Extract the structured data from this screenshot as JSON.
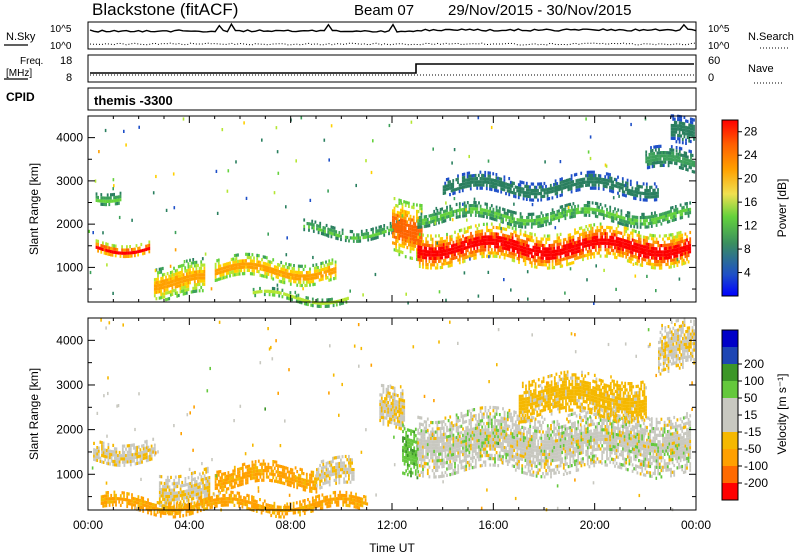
{
  "header": {
    "title": "Blackstone (fitACF)",
    "beam": "Beam 07",
    "date_range": "29/Nov/2015 - 30/Nov/2015"
  },
  "noise_panel": {
    "left_label": "N.Sky",
    "right_label": "N.Search",
    "left_ticks": [
      "10^5",
      "10^0"
    ],
    "right_ticks": [
      "10^5",
      "10^0"
    ]
  },
  "freq_panel": {
    "left_label_1": "Freq.",
    "left_label_2": "[MHz]",
    "right_label": "Nave",
    "left_ticks": [
      "18",
      "8"
    ],
    "right_ticks": [
      "60",
      "0"
    ]
  },
  "cpid_panel": {
    "label": "CPID",
    "value": "themis -3300"
  },
  "colors": {
    "power": [
      "#0000ff",
      "#1e4fc8",
      "#2a7f5f",
      "#3ca05a",
      "#64d23c",
      "#b4e632",
      "#ffd000",
      "#ffa000",
      "#ff6400",
      "#ff0000"
    ],
    "velocity": [
      "#ff0000",
      "#ff6a00",
      "#ffa000",
      "#f5b800",
      "#c8c8c0",
      "#c8c8c0",
      "#64c83c",
      "#3c9628",
      "#1e46b4",
      "#0000c8"
    ]
  },
  "chart_data": [
    {
      "type": "heatmap",
      "name": "power",
      "ylabel": "Slant Range [km]",
      "ylim": [
        200,
        4500
      ],
      "yticks": [
        1000,
        2000,
        3000,
        4000
      ],
      "colorbar_label": "Power [dB]",
      "colorbar_ticks": [
        4,
        8,
        12,
        16,
        20,
        24,
        28
      ],
      "colorbar_range": [
        0,
        30
      ],
      "features": [
        {
          "t": [
            0.3,
            2.4
          ],
          "r": [
            1380,
            1650
          ],
          "min": 14,
          "max": 27
        },
        {
          "t": [
            0.3,
            1.3
          ],
          "r": [
            2580,
            2850
          ],
          "min": 6,
          "max": 12
        },
        {
          "t": [
            2.6,
            4.6
          ],
          "r": [
            300,
            1100
          ],
          "min": 8,
          "max": 22
        },
        {
          "t": [
            5.0,
            9.8
          ],
          "r": [
            700,
            1200
          ],
          "min": 10,
          "max": 22
        },
        {
          "t": [
            6.5,
            10.3
          ],
          "r": [
            250,
            420
          ],
          "min": 8,
          "max": 16
        },
        {
          "t": [
            8.5,
            12.4
          ],
          "r": [
            1750,
            2000
          ],
          "min": 6,
          "max": 12
        },
        {
          "t": [
            12.0,
            13.2
          ],
          "r": [
            1300,
            2600
          ],
          "min": 12,
          "max": 26
        },
        {
          "t": [
            13.0,
            23.8
          ],
          "r": [
            1100,
            1900
          ],
          "min": 14,
          "max": 29
        },
        {
          "t": [
            13.0,
            23.8
          ],
          "r": [
            2050,
            2400
          ],
          "min": 6,
          "max": 12
        },
        {
          "t": [
            14.0,
            22.5
          ],
          "r": [
            2700,
            3100
          ],
          "min": 4,
          "max": 8
        },
        {
          "t": [
            22.0,
            23.9
          ],
          "r": [
            3200,
            3700
          ],
          "min": 4,
          "max": 10
        },
        {
          "t": [
            23.0,
            23.9
          ],
          "r": [
            3800,
            4400
          ],
          "min": 4,
          "max": 8
        }
      ]
    },
    {
      "type": "heatmap",
      "name": "velocity",
      "xlabel": "Time UT",
      "ylabel": "Slant Range [km]",
      "ylim": [
        200,
        4500
      ],
      "yticks": [
        1000,
        2000,
        3000,
        4000
      ],
      "xlim": [
        0,
        24
      ],
      "xticks": [
        "00:00",
        "04:00",
        "08:00",
        "12:00",
        "16:00",
        "20:00",
        "00:00"
      ],
      "colorbar_label": "Velocity [m s⁻¹]",
      "colorbar_ticks": [
        -200,
        -100,
        -50,
        -15,
        15,
        50,
        100,
        200
      ],
      "features": [
        {
          "t": [
            0.2,
            2.6
          ],
          "r": [
            1300,
            1800
          ],
          "v": -10
        },
        {
          "t": [
            2.8,
            4.8
          ],
          "r": [
            300,
            1100
          ],
          "v": -10
        },
        {
          "t": [
            5.0,
            9.0
          ],
          "r": [
            700,
            1200
          ],
          "v": -60
        },
        {
          "t": [
            9.0,
            10.5
          ],
          "r": [
            700,
            1300
          ],
          "v": -10
        },
        {
          "t": [
            0.5,
            11.0
          ],
          "r": [
            200,
            500
          ],
          "v": -60
        },
        {
          "t": [
            11.5,
            12.5
          ],
          "r": [
            2000,
            2900
          ],
          "v": -10
        },
        {
          "t": [
            12.4,
            13.0
          ],
          "r": [
            1000,
            2100
          ],
          "v": 40
        },
        {
          "t": [
            13.0,
            23.8
          ],
          "r": [
            1100,
            2400
          ],
          "v": 0
        },
        {
          "t": [
            17.0,
            22.0
          ],
          "r": [
            2300,
            3200
          ],
          "v": -30
        },
        {
          "t": [
            22.5,
            23.9
          ],
          "r": [
            3300,
            4400
          ],
          "v": -10
        }
      ]
    }
  ]
}
